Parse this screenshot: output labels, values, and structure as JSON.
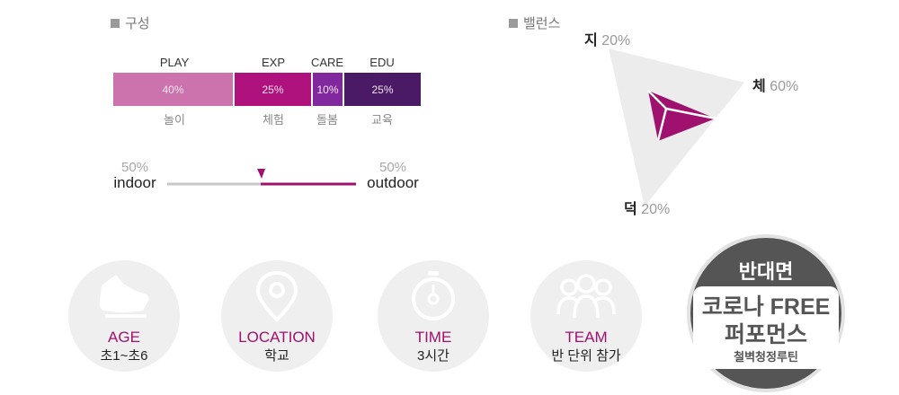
{
  "composition": {
    "title": "구성",
    "segments": [
      {
        "top": "PLAY",
        "value": "40%",
        "bottom": "놀이",
        "color": "#cc73ad"
      },
      {
        "top": "EXP",
        "value": "25%",
        "bottom": "체험",
        "color": "#b0127d"
      },
      {
        "top": "CARE",
        "value": "10%",
        "bottom": "돌봄",
        "color": "#82289f"
      },
      {
        "top": "EDU",
        "value": "25%",
        "bottom": "교육",
        "color": "#4a1a66"
      }
    ]
  },
  "location": {
    "indoor_pct": "50%",
    "indoor_label": "indoor",
    "outdoor_pct": "50%",
    "outdoor_label": "outdoor",
    "indoor_color": "#c8c8c8",
    "outdoor_color": "#a0106f"
  },
  "balance": {
    "title": "밸런스",
    "axes": [
      {
        "name": "지",
        "value": "20%"
      },
      {
        "name": "체",
        "value": "60%"
      },
      {
        "name": "덕",
        "value": "20%"
      }
    ],
    "fill_color": "#a0106f"
  },
  "info": [
    {
      "icon": "sneaker-icon",
      "title": "AGE",
      "value": "초1~초6"
    },
    {
      "icon": "location-pin-icon",
      "title": "LOCATION",
      "value": "학교"
    },
    {
      "icon": "stopwatch-icon",
      "title": "TIME",
      "value": "3시간"
    },
    {
      "icon": "team-icon",
      "title": "TEAM",
      "value": "반 단위 참가"
    }
  ],
  "badge": {
    "title": "반대면",
    "line1": "코로나 FREE",
    "line2": "퍼포먼스",
    "line3": "철벽청정루틴"
  }
}
